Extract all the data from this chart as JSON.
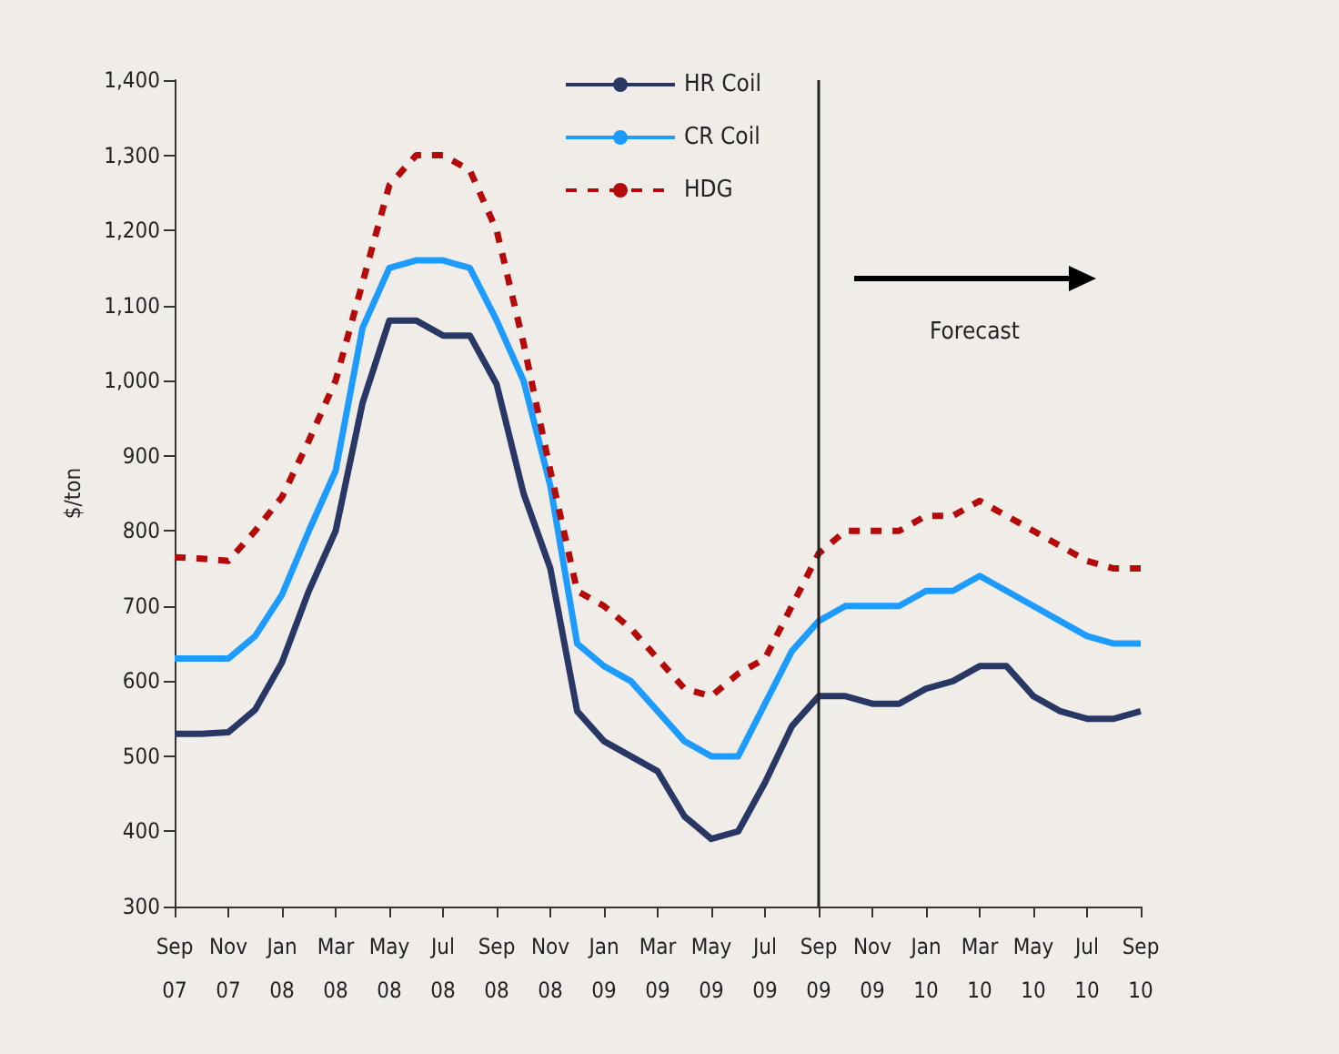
{
  "chart_data": {
    "type": "line",
    "ylabel": "$/ton",
    "categories": [
      "Sep\n07",
      null,
      "Nov\n07",
      null,
      "Jan\n08",
      null,
      "Mar\n08",
      null,
      "May\n08",
      null,
      "Jul\n08",
      null,
      "Sep\n08",
      null,
      "Nov\n08",
      null,
      "Jan\n09",
      null,
      "Mar\n09",
      null,
      "May\n09",
      null,
      "Jul\n09",
      null,
      "Sep\n09",
      null,
      "Nov\n09",
      null,
      "Jan\n10",
      null,
      "Mar\n10",
      null,
      "May\n10",
      null,
      "Jul\n10",
      null,
      "Sep\n10"
    ],
    "series": [
      {
        "name": "HR Coil",
        "color": "#283764",
        "line_style": "solid",
        "values": [
          530,
          530,
          532,
          562,
          625,
          720,
          800,
          970,
          1080,
          1080,
          1060,
          1060,
          995,
          850,
          750,
          560,
          520,
          500,
          480,
          420,
          390,
          400,
          465,
          540,
          580,
          580,
          570,
          570,
          590,
          600,
          620,
          620,
          580,
          560,
          550,
          550,
          560
        ]
      },
      {
        "name": "CR Coil",
        "color": "#1e9bff",
        "line_style": "solid",
        "values": [
          630,
          630,
          630,
          660,
          715,
          800,
          880,
          1070,
          1150,
          1160,
          1160,
          1150,
          1080,
          1000,
          860,
          650,
          620,
          600,
          560,
          520,
          500,
          500,
          570,
          640,
          680,
          700,
          700,
          700,
          720,
          720,
          740,
          720,
          700,
          680,
          660,
          650,
          650
        ]
      },
      {
        "name": "HDG",
        "color": "#b40a0a",
        "line_style": "dashed",
        "values": [
          765,
          763,
          760,
          800,
          845,
          920,
          1000,
          1130,
          1260,
          1300,
          1300,
          1280,
          1200,
          1050,
          880,
          720,
          700,
          670,
          630,
          590,
          580,
          610,
          630,
          700,
          770,
          800,
          800,
          800,
          820,
          820,
          840,
          820,
          800,
          780,
          760,
          750,
          750
        ]
      }
    ],
    "ylim": [
      300,
      1400
    ],
    "yticks": [
      {
        "value": 300,
        "label": "300"
      },
      {
        "value": 400,
        "label": "400"
      },
      {
        "value": 500,
        "label": "500"
      },
      {
        "value": 600,
        "label": "600"
      },
      {
        "value": 700,
        "label": "700"
      },
      {
        "value": 800,
        "label": "800"
      },
      {
        "value": 900,
        "label": "900"
      },
      {
        "value": 1000,
        "label": "1,000"
      },
      {
        "value": 1100,
        "label": "1,100"
      },
      {
        "value": 1200,
        "label": "1,200"
      },
      {
        "value": 1300,
        "label": "1,300"
      },
      {
        "value": 1400,
        "label": "1,400"
      }
    ],
    "ref_lines": [
      {
        "axis": "x",
        "value": "Sep\n09",
        "color": "#222222"
      }
    ],
    "annotations": [
      "Forecast"
    ],
    "grid": false,
    "legend": "top",
    "marker": "none"
  }
}
